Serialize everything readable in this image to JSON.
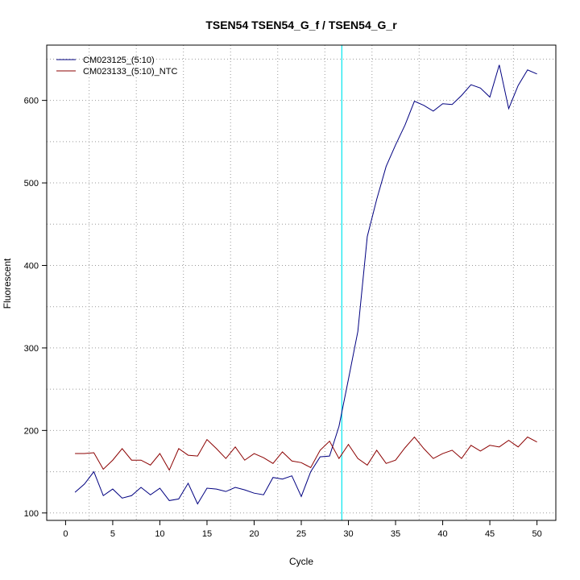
{
  "chart_data": {
    "type": "line",
    "title": "TSEN54  TSEN54_G_f / TSEN54_G_r",
    "xlabel": "Cycle",
    "ylabel": "Fluorescent",
    "xlim": [
      -2,
      52
    ],
    "ylim": [
      91,
      667
    ],
    "x_ticks": [
      0,
      5,
      10,
      15,
      20,
      25,
      30,
      35,
      40,
      45,
      50
    ],
    "y_ticks": [
      100,
      200,
      300,
      400,
      500,
      600
    ],
    "x_tick_labels": [
      "0",
      "5",
      "10",
      "15",
      "20",
      "25",
      "30",
      "35",
      "40",
      "45",
      "50"
    ],
    "y_tick_labels": [
      "100",
      "200",
      "300",
      "400",
      "500",
      "600"
    ],
    "grid": true,
    "legend_position": "top-left",
    "threshold_line": {
      "x": 29.3,
      "color": "#00e5ee"
    },
    "x": [
      1,
      2,
      3,
      4,
      5,
      6,
      7,
      8,
      9,
      10,
      11,
      12,
      13,
      14,
      15,
      16,
      17,
      18,
      19,
      20,
      21,
      22,
      23,
      24,
      25,
      26,
      27,
      28,
      29,
      30,
      31,
      32,
      33,
      34,
      35,
      36,
      37,
      38,
      39,
      40,
      41,
      42,
      43,
      44,
      45,
      46,
      47,
      48,
      49,
      50
    ],
    "series": [
      {
        "name": "CM023125_(5:10)",
        "color": "#000080",
        "values": [
          125,
          135,
          150,
          121,
          129,
          118,
          121,
          131,
          122,
          130,
          115,
          117,
          136,
          111,
          130,
          129,
          126,
          131,
          128,
          124,
          122,
          143,
          141,
          145,
          120,
          150,
          168,
          169,
          205,
          262,
          320,
          435,
          480,
          520,
          546,
          570,
          599,
          594,
          587,
          596,
          595,
          606,
          619,
          615,
          604,
          643,
          590,
          618,
          637,
          632
        ]
      },
      {
        "name": "CM023133_(5:10)_NTC",
        "color": "#8b0000",
        "values": [
          172,
          172,
          173,
          153,
          164,
          178,
          164,
          164,
          158,
          172,
          152,
          178,
          170,
          169,
          189,
          178,
          166,
          180,
          164,
          172,
          167,
          160,
          174,
          163,
          161,
          155,
          176,
          187,
          166,
          183,
          166,
          158,
          176,
          160,
          164,
          179,
          192,
          178,
          166,
          172,
          176,
          166,
          182,
          175,
          182,
          180,
          188,
          180,
          192,
          186
        ]
      }
    ]
  }
}
